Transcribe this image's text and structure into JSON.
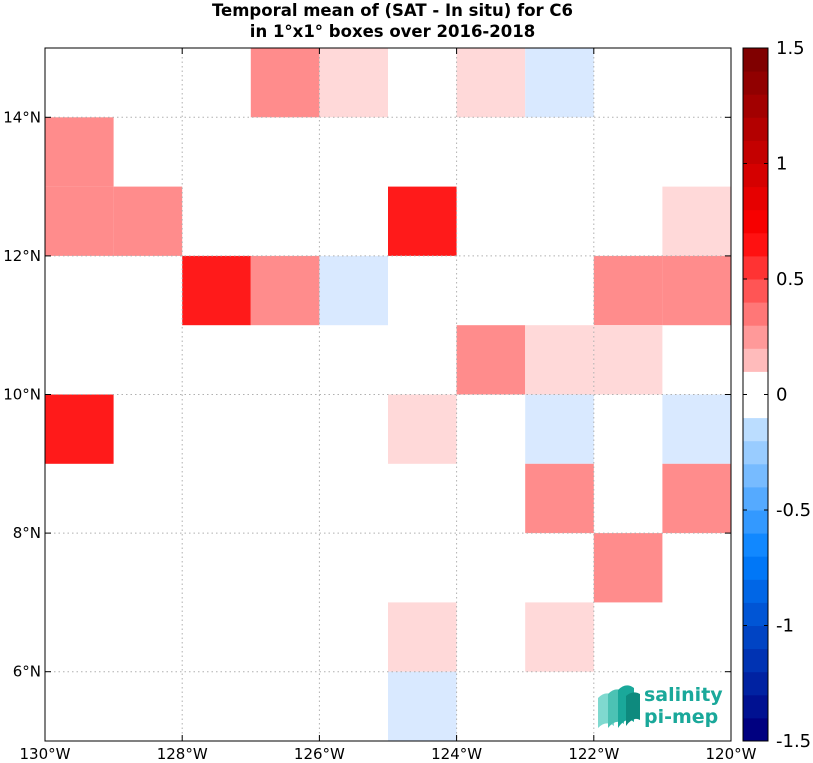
{
  "chart_data": {
    "type": "heatmap",
    "title": "Temporal mean of (SAT - In situ) for C6",
    "subtitle": "in 1°x1° boxes over 2016-2018",
    "x_range": [
      -130,
      -120
    ],
    "y_range": [
      5,
      15
    ],
    "x_ticks": [
      {
        "value": -130,
        "label": "130°W"
      },
      {
        "value": -128,
        "label": "128°W"
      },
      {
        "value": -126,
        "label": "126°W"
      },
      {
        "value": -124,
        "label": "124°W"
      },
      {
        "value": -122,
        "label": "122°W"
      },
      {
        "value": -120,
        "label": "120°W"
      }
    ],
    "y_ticks": [
      {
        "value": 6,
        "label": "6°N"
      },
      {
        "value": 8,
        "label": "8°N"
      },
      {
        "value": 10,
        "label": "10°N"
      },
      {
        "value": 12,
        "label": "12°N"
      },
      {
        "value": 14,
        "label": "14°N"
      }
    ],
    "grid": "dotted",
    "cells": [
      {
        "lon": -127,
        "lat": 14,
        "value": 0.35
      },
      {
        "lon": -126,
        "lat": 14,
        "value": 0.1
      },
      {
        "lon": -124,
        "lat": 14,
        "value": 0.1
      },
      {
        "lon": -123,
        "lat": 14,
        "value": -0.1
      },
      {
        "lon": -130,
        "lat": 13,
        "value": 0.25
      },
      {
        "lon": -130,
        "lat": 12,
        "value": 0.25
      },
      {
        "lon": -129,
        "lat": 12,
        "value": 0.35
      },
      {
        "lon": -125,
        "lat": 12,
        "value": 0.55
      },
      {
        "lon": -121,
        "lat": 12,
        "value": 0.1
      },
      {
        "lon": -128,
        "lat": 11,
        "value": 0.55
      },
      {
        "lon": -127,
        "lat": 11,
        "value": 0.25
      },
      {
        "lon": -126,
        "lat": 11,
        "value": -0.1
      },
      {
        "lon": -122,
        "lat": 11,
        "value": 0.25
      },
      {
        "lon": -121,
        "lat": 11,
        "value": 0.25
      },
      {
        "lon": -124,
        "lat": 10,
        "value": 0.25
      },
      {
        "lon": -123,
        "lat": 10,
        "value": 0.1
      },
      {
        "lon": -122,
        "lat": 10,
        "value": 0.1
      },
      {
        "lon": -130,
        "lat": 9,
        "value": 0.55
      },
      {
        "lon": -125,
        "lat": 9,
        "value": 0.1
      },
      {
        "lon": -123,
        "lat": 9,
        "value": -0.1
      },
      {
        "lon": -121,
        "lat": 9,
        "value": -0.1
      },
      {
        "lon": -123,
        "lat": 8,
        "value": 0.35
      },
      {
        "lon": -121,
        "lat": 8,
        "value": 0.25
      },
      {
        "lon": -122,
        "lat": 7,
        "value": 0.25
      },
      {
        "lon": -125,
        "lat": 6,
        "value": 0.1
      },
      {
        "lon": -123,
        "lat": 6,
        "value": 0.1
      },
      {
        "lon": -125,
        "lat": 5,
        "value": -0.1
      }
    ],
    "colorbar": {
      "range": [
        -1.5,
        1.5
      ],
      "step": 0.1,
      "ticks": [
        {
          "value": 1.5,
          "label": "1.5"
        },
        {
          "value": 1,
          "label": "1"
        },
        {
          "value": 0.5,
          "label": "0.5"
        },
        {
          "value": 0,
          "label": "0"
        },
        {
          "value": -0.5,
          "label": "-0.5"
        },
        {
          "value": -1,
          "label": "-1"
        },
        {
          "value": -1.5,
          "label": "-1.5"
        }
      ]
    }
  },
  "logo": {
    "line1": "salinity",
    "line2": "pi-mep"
  }
}
